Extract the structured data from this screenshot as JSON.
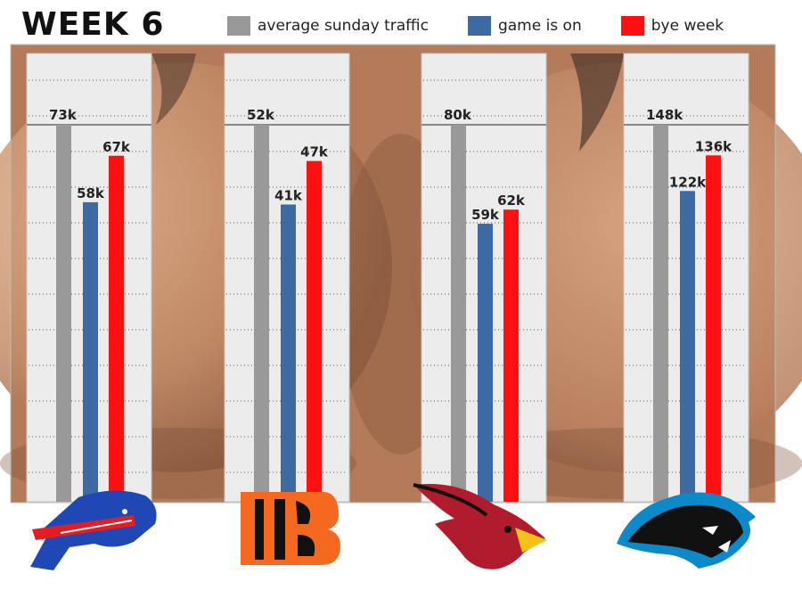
{
  "title": "WEEK 6",
  "legend": {
    "items": [
      {
        "label": "average sunday traffic",
        "color": "#999999"
      },
      {
        "label": "game is on",
        "color": "#3d6aa3"
      },
      {
        "label": "bye week",
        "color": "#ff1010"
      }
    ]
  },
  "teams": [
    {
      "name": "Buffalo Bills",
      "logo": "bills-logo"
    },
    {
      "name": "Cincinnati Bengals",
      "logo": "bengals-logo"
    },
    {
      "name": "Arizona Cardinals",
      "logo": "cardinals-logo"
    },
    {
      "name": "Carolina Panthers",
      "logo": "panthers-logo"
    }
  ],
  "chart_data": {
    "type": "bar",
    "categories": [
      "Buffalo Bills",
      "Cincinnati Bengals",
      "Arizona Cardinals",
      "Carolina Panthers"
    ],
    "series": [
      {
        "name": "average sunday traffic",
        "values": [
          73,
          52,
          80,
          148
        ],
        "labels": [
          "73k",
          "52k",
          "80k",
          "148k"
        ],
        "color": "#999999"
      },
      {
        "name": "game is on",
        "values": [
          58,
          41,
          59,
          122
        ],
        "labels": [
          "58k",
          "41k",
          "59k",
          "122k"
        ],
        "color": "#3d6aa3"
      },
      {
        "name": "bye week",
        "values": [
          67,
          47,
          62,
          136
        ],
        "labels": [
          "67k",
          "47k",
          "62k",
          "136k"
        ],
        "color": "#ff1010"
      }
    ],
    "title": "WEEK 6",
    "grid": true,
    "legend": "top"
  }
}
